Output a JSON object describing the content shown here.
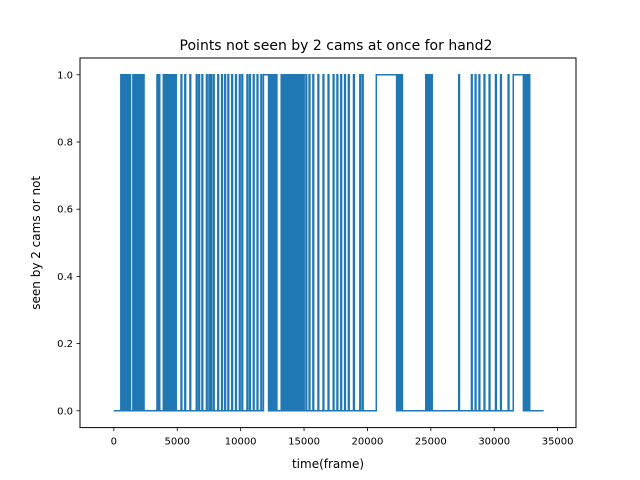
{
  "chart_data": {
    "type": "line",
    "title": "Points not seen by 2 cams at once for hand2",
    "xlabel": "time(frame)",
    "ylabel": "seen by 2 cams or not",
    "xlim": [
      -2670,
      36450
    ],
    "ylim": [
      -0.05,
      1.05
    ],
    "x_ticks": [
      0,
      5000,
      10000,
      15000,
      20000,
      25000,
      30000,
      35000
    ],
    "x_tick_labels": [
      "0",
      "5000",
      "10000",
      "15000",
      "20000",
      "25000",
      "30000",
      "35000"
    ],
    "y_ticks": [
      0.0,
      0.2,
      0.4,
      0.6,
      0.8,
      1.0
    ],
    "y_tick_labels": [
      "0.0",
      "0.2",
      "0.4",
      "0.6",
      "0.8",
      "1.0"
    ],
    "x_range": [
      0,
      33900
    ],
    "series": [
      {
        "color": "#1f77b4",
        "step": true,
        "x_start": 0,
        "x_end": 33900,
        "baseline_value": 0,
        "segments_value_1": [
          [
            550,
            620
          ],
          [
            680,
            720
          ],
          [
            760,
            830
          ],
          [
            880,
            960
          ],
          [
            1010,
            1080
          ],
          [
            1130,
            1180
          ],
          [
            1230,
            1310
          ],
          [
            1500,
            1560
          ],
          [
            1620,
            1700
          ],
          [
            1780,
            1850
          ],
          [
            1900,
            1960
          ],
          [
            2050,
            2120
          ],
          [
            2200,
            2260
          ],
          [
            2320,
            2380
          ],
          [
            3400,
            3480
          ],
          [
            3560,
            3620
          ],
          [
            3900,
            3970
          ],
          [
            4060,
            4140
          ],
          [
            4230,
            4290
          ],
          [
            4380,
            4450
          ],
          [
            4540,
            4600
          ],
          [
            4700,
            4760
          ],
          [
            4850,
            4920
          ],
          [
            5300,
            5360
          ],
          [
            5600,
            5660
          ],
          [
            6000,
            6060
          ],
          [
            6500,
            6570
          ],
          [
            6700,
            6760
          ],
          [
            6950,
            7010
          ],
          [
            7300,
            7360
          ],
          [
            7500,
            7570
          ],
          [
            7650,
            7710
          ],
          [
            7850,
            7910
          ],
          [
            8200,
            8260
          ],
          [
            8500,
            8560
          ],
          [
            8750,
            8810
          ],
          [
            9000,
            9060
          ],
          [
            9300,
            9360
          ],
          [
            9600,
            9660
          ],
          [
            9900,
            9960
          ],
          [
            10100,
            10160
          ],
          [
            10500,
            10560
          ],
          [
            10700,
            10760
          ],
          [
            11000,
            11060
          ],
          [
            11300,
            11360
          ],
          [
            11600,
            11660
          ],
          [
            11800,
            12200
          ],
          [
            12250,
            12330
          ],
          [
            12400,
            12480
          ],
          [
            12600,
            12680
          ],
          [
            12800,
            12860
          ],
          [
            13200,
            13280
          ],
          [
            13400,
            13480
          ],
          [
            13600,
            13660
          ],
          [
            13750,
            13820
          ],
          [
            13900,
            13960
          ],
          [
            14050,
            14110
          ],
          [
            14200,
            14270
          ],
          [
            14350,
            14410
          ],
          [
            14500,
            14560
          ],
          [
            14650,
            14720
          ],
          [
            14800,
            14860
          ],
          [
            14950,
            15010
          ],
          [
            15150,
            15210
          ],
          [
            15400,
            15460
          ],
          [
            15700,
            15760
          ],
          [
            16100,
            16160
          ],
          [
            16500,
            16560
          ],
          [
            16900,
            16960
          ],
          [
            17300,
            17360
          ],
          [
            17600,
            17660
          ],
          [
            17900,
            17960
          ],
          [
            18200,
            18260
          ],
          [
            18500,
            18560
          ],
          [
            18900,
            18960
          ],
          [
            19400,
            19460
          ],
          [
            19600,
            19660
          ],
          [
            20700,
            22300
          ],
          [
            22400,
            22460
          ],
          [
            22550,
            22610
          ],
          [
            22700,
            22760
          ],
          [
            24600,
            24660
          ],
          [
            24750,
            24810
          ],
          [
            24900,
            24960
          ],
          [
            25050,
            25110
          ],
          [
            27200,
            27260
          ],
          [
            28200,
            28260
          ],
          [
            28500,
            28560
          ],
          [
            28800,
            28860
          ],
          [
            29200,
            29260
          ],
          [
            29600,
            29660
          ],
          [
            30100,
            30160
          ],
          [
            30500,
            30560
          ],
          [
            31100,
            31160
          ],
          [
            31500,
            32300
          ],
          [
            32350,
            32410
          ],
          [
            32500,
            32560
          ],
          [
            32650,
            32710
          ],
          [
            32750,
            32800
          ]
        ]
      }
    ],
    "grid": false,
    "legend": "none"
  }
}
